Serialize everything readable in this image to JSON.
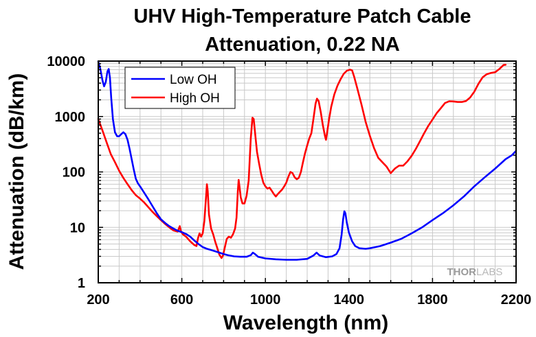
{
  "chart_data": {
    "type": "line",
    "title": [
      "UHV High-Temperature Patch Cable",
      "Attenuation, 0.22 NA"
    ],
    "xlabel": "Wavelength (nm)",
    "ylabel": "Attenuation (dB/km)",
    "xscale": "linear",
    "yscale": "log",
    "xlim": [
      200,
      2200
    ],
    "ylim": [
      1,
      10000
    ],
    "xticks": [
      200,
      600,
      1000,
      1400,
      1800,
      2200
    ],
    "xtick_labels": [
      "200",
      "600",
      "1000",
      "1400",
      "1800",
      "2200"
    ],
    "yticks": [
      1,
      10,
      100,
      1000,
      10000
    ],
    "ytick_labels": [
      "1",
      "10",
      "100",
      "1000",
      "10000"
    ],
    "grid": true,
    "legend_position": "top-left",
    "watermark": [
      "THOR",
      "LABS"
    ],
    "series": [
      {
        "name": "Low OH",
        "color": "#0000ff",
        "points": [
          [
            200,
            9800
          ],
          [
            210,
            7200
          ],
          [
            220,
            4500
          ],
          [
            228,
            3500
          ],
          [
            236,
            4200
          ],
          [
            244,
            6500
          ],
          [
            250,
            7200
          ],
          [
            256,
            5000
          ],
          [
            262,
            2200
          ],
          [
            270,
            900
          ],
          [
            280,
            520
          ],
          [
            290,
            440
          ],
          [
            300,
            440
          ],
          [
            310,
            480
          ],
          [
            320,
            520
          ],
          [
            330,
            480
          ],
          [
            340,
            380
          ],
          [
            350,
            260
          ],
          [
            360,
            170
          ],
          [
            370,
            110
          ],
          [
            380,
            75
          ],
          [
            390,
            62
          ],
          [
            400,
            55
          ],
          [
            420,
            42
          ],
          [
            440,
            32
          ],
          [
            460,
            24
          ],
          [
            480,
            18
          ],
          [
            500,
            14
          ],
          [
            520,
            12
          ],
          [
            540,
            10.5
          ],
          [
            560,
            9.5
          ],
          [
            580,
            8.7
          ],
          [
            600,
            8.2
          ],
          [
            620,
            7.6
          ],
          [
            640,
            6.8
          ],
          [
            660,
            5.8
          ],
          [
            680,
            5.0
          ],
          [
            700,
            4.4
          ],
          [
            720,
            4.1
          ],
          [
            740,
            3.9
          ],
          [
            760,
            3.7
          ],
          [
            780,
            3.5
          ],
          [
            800,
            3.3
          ],
          [
            820,
            3.15
          ],
          [
            850,
            3.0
          ],
          [
            880,
            2.95
          ],
          [
            910,
            2.95
          ],
          [
            930,
            3.15
          ],
          [
            940,
            3.5
          ],
          [
            950,
            3.3
          ],
          [
            965,
            2.95
          ],
          [
            1000,
            2.75
          ],
          [
            1050,
            2.65
          ],
          [
            1100,
            2.6
          ],
          [
            1150,
            2.6
          ],
          [
            1200,
            2.7
          ],
          [
            1230,
            3.1
          ],
          [
            1245,
            3.5
          ],
          [
            1260,
            3.1
          ],
          [
            1290,
            2.9
          ],
          [
            1320,
            3.0
          ],
          [
            1340,
            3.3
          ],
          [
            1355,
            4.2
          ],
          [
            1365,
            7.5
          ],
          [
            1372,
            14
          ],
          [
            1378,
            19.5
          ],
          [
            1383,
            18
          ],
          [
            1390,
            12
          ],
          [
            1400,
            8
          ],
          [
            1415,
            5.6
          ],
          [
            1430,
            4.6
          ],
          [
            1450,
            4.2
          ],
          [
            1480,
            4.1
          ],
          [
            1500,
            4.2
          ],
          [
            1550,
            4.6
          ],
          [
            1600,
            5.3
          ],
          [
            1650,
            6.2
          ],
          [
            1700,
            7.8
          ],
          [
            1750,
            10
          ],
          [
            1800,
            13.5
          ],
          [
            1850,
            18
          ],
          [
            1900,
            25
          ],
          [
            1950,
            36
          ],
          [
            2000,
            55
          ],
          [
            2050,
            80
          ],
          [
            2100,
            115
          ],
          [
            2150,
            170
          ],
          [
            2180,
            200
          ],
          [
            2200,
            240
          ]
        ]
      },
      {
        "name": "High OH",
        "color": "#ff0000",
        "points": [
          [
            200,
            900
          ],
          [
            220,
            560
          ],
          [
            240,
            340
          ],
          [
            260,
            210
          ],
          [
            280,
            150
          ],
          [
            300,
            105
          ],
          [
            320,
            78
          ],
          [
            340,
            60
          ],
          [
            360,
            47
          ],
          [
            380,
            38
          ],
          [
            400,
            33
          ],
          [
            420,
            28
          ],
          [
            440,
            23
          ],
          [
            460,
            19
          ],
          [
            480,
            16
          ],
          [
            500,
            13.5
          ],
          [
            520,
            11.5
          ],
          [
            540,
            10
          ],
          [
            560,
            8.8
          ],
          [
            580,
            8.4
          ],
          [
            590,
            10.5
          ],
          [
            596,
            8.4
          ],
          [
            605,
            7.5
          ],
          [
            620,
            6.8
          ],
          [
            640,
            5.6
          ],
          [
            660,
            4.8
          ],
          [
            670,
            4.6
          ],
          [
            678,
            6.5
          ],
          [
            685,
            7.8
          ],
          [
            692,
            6.8
          ],
          [
            700,
            7.8
          ],
          [
            708,
            13
          ],
          [
            715,
            32
          ],
          [
            720,
            60
          ],
          [
            724,
            45
          ],
          [
            730,
            17
          ],
          [
            740,
            9.5
          ],
          [
            750,
            7.5
          ],
          [
            760,
            5.5
          ],
          [
            770,
            4.2
          ],
          [
            780,
            3.2
          ],
          [
            790,
            2.8
          ],
          [
            797,
            3.1
          ],
          [
            805,
            4.2
          ],
          [
            815,
            6.2
          ],
          [
            825,
            6.8
          ],
          [
            835,
            6.5
          ],
          [
            845,
            7.5
          ],
          [
            855,
            9.5
          ],
          [
            862,
            15
          ],
          [
            868,
            45
          ],
          [
            872,
            72
          ],
          [
            876,
            55
          ],
          [
            882,
            35
          ],
          [
            890,
            27
          ],
          [
            900,
            27
          ],
          [
            910,
            37
          ],
          [
            920,
            70
          ],
          [
            930,
            400
          ],
          [
            938,
            950
          ],
          [
            944,
            900
          ],
          [
            952,
            450
          ],
          [
            960,
            230
          ],
          [
            970,
            140
          ],
          [
            980,
            90
          ],
          [
            990,
            64
          ],
          [
            1000,
            55
          ],
          [
            1010,
            50
          ],
          [
            1020,
            52
          ],
          [
            1030,
            46
          ],
          [
            1040,
            40
          ],
          [
            1050,
            36
          ],
          [
            1060,
            40
          ],
          [
            1070,
            44
          ],
          [
            1080,
            48
          ],
          [
            1090,
            55
          ],
          [
            1100,
            64
          ],
          [
            1110,
            82
          ],
          [
            1120,
            100
          ],
          [
            1130,
            95
          ],
          [
            1140,
            80
          ],
          [
            1150,
            74
          ],
          [
            1160,
            78
          ],
          [
            1170,
            100
          ],
          [
            1180,
            150
          ],
          [
            1190,
            220
          ],
          [
            1200,
            300
          ],
          [
            1210,
            400
          ],
          [
            1220,
            500
          ],
          [
            1230,
            900
          ],
          [
            1240,
            1700
          ],
          [
            1247,
            2100
          ],
          [
            1255,
            1900
          ],
          [
            1265,
            1200
          ],
          [
            1275,
            700
          ],
          [
            1285,
            450
          ],
          [
            1290,
            380
          ],
          [
            1295,
            500
          ],
          [
            1305,
            900
          ],
          [
            1315,
            1500
          ],
          [
            1330,
            2500
          ],
          [
            1345,
            3600
          ],
          [
            1360,
            4700
          ],
          [
            1375,
            5900
          ],
          [
            1390,
            6700
          ],
          [
            1405,
            7000
          ],
          [
            1415,
            6800
          ],
          [
            1425,
            5200
          ],
          [
            1440,
            3200
          ],
          [
            1460,
            1650
          ],
          [
            1480,
            800
          ],
          [
            1500,
            450
          ],
          [
            1520,
            270
          ],
          [
            1540,
            180
          ],
          [
            1560,
            150
          ],
          [
            1580,
            125
          ],
          [
            1600,
            95
          ],
          [
            1620,
            115
          ],
          [
            1640,
            130
          ],
          [
            1660,
            130
          ],
          [
            1680,
            155
          ],
          [
            1700,
            195
          ],
          [
            1720,
            260
          ],
          [
            1740,
            360
          ],
          [
            1760,
            500
          ],
          [
            1780,
            680
          ],
          [
            1800,
            880
          ],
          [
            1820,
            1150
          ],
          [
            1840,
            1420
          ],
          [
            1860,
            1750
          ],
          [
            1880,
            1880
          ],
          [
            1900,
            1870
          ],
          [
            1920,
            1830
          ],
          [
            1940,
            1830
          ],
          [
            1960,
            1900
          ],
          [
            1980,
            2200
          ],
          [
            2000,
            2800
          ],
          [
            2020,
            3900
          ],
          [
            2040,
            5100
          ],
          [
            2060,
            5800
          ],
          [
            2080,
            6100
          ],
          [
            2100,
            6300
          ],
          [
            2120,
            7200
          ],
          [
            2140,
            8500
          ],
          [
            2150,
            8600
          ]
        ]
      }
    ]
  }
}
